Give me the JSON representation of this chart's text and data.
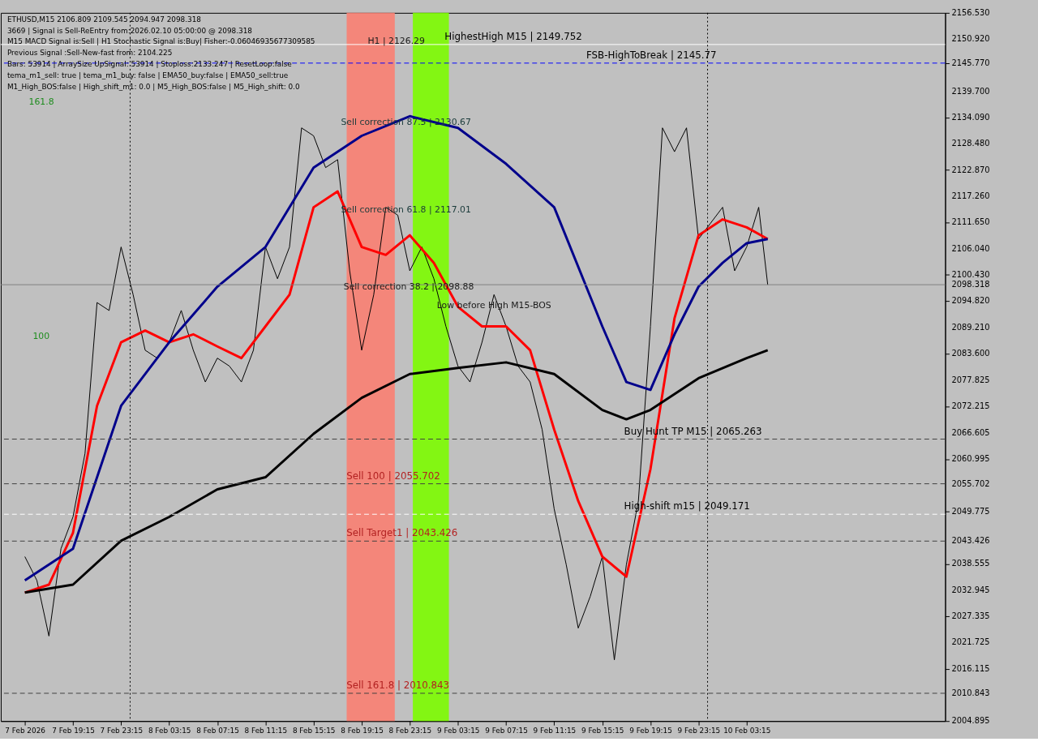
{
  "chart_data": {
    "type": "line",
    "title": "ETHUSD,M15  2106.809 2109.545 2094.947 2098.318",
    "x": [
      "2026-02-07T15:15",
      "2026-02-07T16:15",
      "2026-02-07T17:15",
      "2026-02-07T18:15",
      "2026-02-07T19:15",
      "2026-02-07T20:15",
      "2026-02-07T21:15",
      "2026-02-07T22:15",
      "2026-02-07T23:15",
      "2026-02-08T00:15",
      "2026-02-08T01:15",
      "2026-02-08T02:15",
      "2026-02-08T03:15",
      "2026-02-08T04:15",
      "2026-02-08T05:15",
      "2026-02-08T06:15",
      "2026-02-08T07:15",
      "2026-02-08T08:15",
      "2026-02-08T09:15",
      "2026-02-08T10:15",
      "2026-02-08T11:15",
      "2026-02-08T12:15",
      "2026-02-08T13:15",
      "2026-02-08T14:15",
      "2026-02-08T15:15",
      "2026-02-08T16:15",
      "2026-02-08T17:15",
      "2026-02-08T18:15",
      "2026-02-08T19:15",
      "2026-02-08T20:15",
      "2026-02-08T21:15",
      "2026-02-08T22:15",
      "2026-02-08T23:15",
      "2026-02-09T00:15",
      "2026-02-09T01:15",
      "2026-02-09T02:15",
      "2026-02-09T03:15",
      "2026-02-09T04:15",
      "2026-02-09T05:15",
      "2026-02-09T06:15",
      "2026-02-09T07:15",
      "2026-02-09T08:15",
      "2026-02-09T09:15",
      "2026-02-09T10:15",
      "2026-02-09T11:15",
      "2026-02-09T12:15",
      "2026-02-09T13:15",
      "2026-02-09T14:15",
      "2026-02-09T15:15",
      "2026-02-09T16:15",
      "2026-02-09T17:15",
      "2026-02-09T18:15",
      "2026-02-09T19:15",
      "2026-02-09T20:15",
      "2026-02-09T21:15",
      "2026-02-09T22:15",
      "2026-02-09T23:15",
      "2026-02-10T00:15",
      "2026-02-10T01:15",
      "2026-02-10T02:15",
      "2026-02-10T03:15",
      "2026-02-10T04:15",
      "2026-02-10T05:00"
    ],
    "series": [
      {
        "color": "#000000",
        "values": [
          2040.1,
          2035.0,
          2023.1,
          2041.8,
          2048.6,
          2062.2,
          2094.5,
          2092.8,
          2106.4,
          2096.2,
          2084.3,
          2082.6,
          2086.0,
          2092.8,
          2084.3,
          2077.5,
          2082.6,
          2080.9,
          2077.5,
          2084.3,
          2106.4,
          2099.6,
          2106.4,
          2131.9,
          2130.2,
          2123.4,
          2125.1,
          2101.3,
          2084.3,
          2096.2,
          2114.9,
          2113.2,
          2101.3,
          2106.4,
          2099.6,
          2089.4,
          2080.9,
          2077.5,
          2086.0,
          2096.2,
          2089.4,
          2080.9,
          2077.5,
          2067.3,
          2050.3,
          2038.4,
          2024.8,
          2031.6,
          2040.1,
          2018.0,
          2038.4,
          2052.0,
          2089.4,
          2131.9,
          2126.8,
          2131.9,
          2108.1,
          2111.5,
          2114.9,
          2101.3,
          2106.4,
          2114.9,
          2098.3
        ]
      },
      {
        "color": "#ff0000",
        "x": [
          "2026-02-07T15:15",
          "2026-02-07T17:15",
          "2026-02-07T19:15",
          "2026-02-07T21:15",
          "2026-02-07T23:15",
          "2026-02-08T01:15",
          "2026-02-08T03:15",
          "2026-02-08T05:15",
          "2026-02-08T07:15",
          "2026-02-08T09:15",
          "2026-02-08T11:15",
          "2026-02-08T13:15",
          "2026-02-08T15:15",
          "2026-02-08T17:15",
          "2026-02-08T19:15",
          "2026-02-08T21:15",
          "2026-02-08T23:15",
          "2026-02-09T01:15",
          "2026-02-09T03:15",
          "2026-02-09T05:15",
          "2026-02-09T07:15",
          "2026-02-09T09:15",
          "2026-02-09T11:15",
          "2026-02-09T13:15",
          "2026-02-09T15:15",
          "2026-02-09T17:15",
          "2026-02-09T19:15",
          "2026-02-09T21:15",
          "2026-02-09T23:15",
          "2026-02-10T01:15",
          "2026-02-10T03:15",
          "2026-02-10T05:00"
        ],
        "values": [
          2032.4,
          2034.1,
          2045.2,
          2072.4,
          2086.0,
          2088.5,
          2086.0,
          2087.7,
          2085.1,
          2082.6,
          2089.4,
          2096.2,
          2114.9,
          2118.3,
          2106.4,
          2104.7,
          2108.9,
          2103.0,
          2093.6,
          2089.4,
          2089.4,
          2084.3,
          2067.3,
          2052.0,
          2040.1,
          2035.8,
          2058.8,
          2091.1,
          2108.9,
          2112.3,
          2110.6,
          2108.1
        ]
      },
      {
        "color": "#00008b",
        "x": [
          "2026-02-07T15:15",
          "2026-02-07T19:15",
          "2026-02-07T23:15",
          "2026-02-08T03:15",
          "2026-02-08T07:15",
          "2026-02-08T11:15",
          "2026-02-08T15:15",
          "2026-02-08T19:15",
          "2026-02-08T23:15",
          "2026-02-09T03:15",
          "2026-02-09T07:15",
          "2026-02-09T11:15",
          "2026-02-09T15:15",
          "2026-02-09T17:15",
          "2026-02-09T19:15",
          "2026-02-09T21:15",
          "2026-02-09T23:15",
          "2026-02-10T01:15",
          "2026-02-10T03:15",
          "2026-02-10T05:00"
        ],
        "values": [
          2035.0,
          2041.8,
          2072.4,
          2086.0,
          2097.9,
          2106.4,
          2123.4,
          2130.2,
          2134.4,
          2131.9,
          2124.2,
          2114.9,
          2089.4,
          2077.5,
          2075.8,
          2087.7,
          2097.9,
          2103.0,
          2107.2,
          2108.1
        ]
      },
      {
        "color": "#000000",
        "x": [
          "2026-02-07T15:15",
          "2026-02-07T19:15",
          "2026-02-07T23:15",
          "2026-02-08T03:15",
          "2026-02-08T07:15",
          "2026-02-08T11:15",
          "2026-02-08T15:15",
          "2026-02-08T19:15",
          "2026-02-08T23:15",
          "2026-02-09T03:15",
          "2026-02-09T07:15",
          "2026-02-09T11:15",
          "2026-02-09T15:15",
          "2026-02-09T17:15",
          "2026-02-09T19:15",
          "2026-02-09T23:15",
          "2026-02-10T03:15",
          "2026-02-10T05:00"
        ],
        "values": [
          2032.4,
          2034.1,
          2043.5,
          2048.6,
          2054.5,
          2057.1,
          2066.4,
          2074.1,
          2079.2,
          2080.5,
          2081.7,
          2079.2,
          2071.5,
          2069.5,
          2071.5,
          2078.3,
          2082.6,
          2084.3
        ]
      }
    ],
    "xlim": [
      "2026-02-07T13:15",
      "2026-02-10T19:45"
    ],
    "xticks": [
      {
        "value": "2026-02-07T15:15",
        "label": "7 Feb 2026"
      },
      {
        "value": "2026-02-07T19:15",
        "label": "7 Feb 19:15"
      },
      {
        "value": "2026-02-07T23:15",
        "label": "7 Feb 23:15"
      },
      {
        "value": "2026-02-08T03:15",
        "label": "8 Feb 03:15"
      },
      {
        "value": "2026-02-08T07:15",
        "label": "8 Feb 07:15"
      },
      {
        "value": "2026-02-08T11:15",
        "label": "8 Feb 11:15"
      },
      {
        "value": "2026-02-08T15:15",
        "label": "8 Feb 15:15"
      },
      {
        "value": "2026-02-08T19:15",
        "label": "8 Feb 19:15"
      },
      {
        "value": "2026-02-08T23:15",
        "label": "8 Feb 23:15"
      },
      {
        "value": "2026-02-09T03:15",
        "label": "9 Feb 03:15"
      },
      {
        "value": "2026-02-09T07:15",
        "label": "9 Feb 07:15"
      },
      {
        "value": "2026-02-09T11:15",
        "label": "9 Feb 11:15"
      },
      {
        "value": "2026-02-09T15:15",
        "label": "9 Feb 15:15"
      },
      {
        "value": "2026-02-09T19:15",
        "label": "9 Feb 19:15"
      },
      {
        "value": "2026-02-09T23:15",
        "label": "9 Feb 23:15"
      },
      {
        "value": "2026-02-10T03:15",
        "label": "10 Feb 03:15"
      }
    ],
    "ylim": [
      2004.895,
      2156.53
    ],
    "yticks": [
      {
        "value": 2156.53,
        "label": "2156.530"
      },
      {
        "value": 2150.92,
        "label": "2150.920"
      },
      {
        "value": 2145.77,
        "label": "2145.770"
      },
      {
        "value": 2139.7,
        "label": "2139.700"
      },
      {
        "value": 2134.09,
        "label": "2134.090"
      },
      {
        "value": 2128.48,
        "label": "2128.480"
      },
      {
        "value": 2122.87,
        "label": "2122.870"
      },
      {
        "value": 2117.26,
        "label": "2117.260"
      },
      {
        "value": 2111.65,
        "label": "2111.650"
      },
      {
        "value": 2106.04,
        "label": "2106.040"
      },
      {
        "value": 2100.43,
        "label": "2100.430"
      },
      {
        "value": 2098.318,
        "label": "2098.318"
      },
      {
        "value": 2094.82,
        "label": "2094.820"
      },
      {
        "value": 2089.21,
        "label": "2089.210"
      },
      {
        "value": 2083.6,
        "label": "2083.600"
      },
      {
        "value": 2077.825,
        "label": "2077.825"
      },
      {
        "value": 2072.215,
        "label": "2072.215"
      },
      {
        "value": 2066.605,
        "label": "2066.605"
      },
      {
        "value": 2060.995,
        "label": "2060.995"
      },
      {
        "value": 2055.702,
        "label": "2055.702"
      },
      {
        "value": 2049.775,
        "label": "2049.775"
      },
      {
        "value": 2043.426,
        "label": "2043.426"
      },
      {
        "value": 2038.555,
        "label": "2038.555"
      },
      {
        "value": 2032.945,
        "label": "2032.945"
      },
      {
        "value": 2027.335,
        "label": "2027.335"
      },
      {
        "value": 2021.725,
        "label": "2021.725"
      },
      {
        "value": 2016.115,
        "label": "2016.115"
      },
      {
        "value": 2010.843,
        "label": "2010.843"
      },
      {
        "value": 2004.895,
        "label": "2004.895"
      }
    ],
    "bands": [
      {
        "axis": "x",
        "from": "2026-02-08T18:00",
        "to": "2026-02-08T22:00",
        "color": "#fa8072"
      },
      {
        "axis": "x",
        "from": "2026-02-08T23:30",
        "to": "2026-02-09T02:30",
        "color": "#7cfc00"
      }
    ],
    "ref_lines": [
      {
        "axis": "y",
        "value": 2149.752,
        "label": "HighestHigh  M15 | 2149.752",
        "color": "#ffffff",
        "line_style": "solid"
      },
      {
        "axis": "y",
        "value": 2145.77,
        "label": "FSB-HighToBreak | 2145.77",
        "color": "#0000ff",
        "line_style": "dashed"
      },
      {
        "axis": "y",
        "value": 2098.318,
        "color": "#808080",
        "line_style": "solid"
      },
      {
        "axis": "y",
        "value": 2065.263,
        "label": "Buy Hunt TP M15 | 2065.263",
        "color": "#404040",
        "line_style": "dashed"
      },
      {
        "axis": "y",
        "value": 2055.702,
        "label": "Sell 100 | 2055.702",
        "color": "#404040",
        "line_style": "dashed"
      },
      {
        "axis": "y",
        "value": 2049.171,
        "label": "High-shift m15 | 2049.171",
        "color": "#ffffff",
        "line_style": "dashed"
      },
      {
        "axis": "y",
        "value": 2043.426,
        "label": "Sell Target1 | 2043.426",
        "color": "#404040",
        "line_style": "dashed"
      },
      {
        "axis": "y",
        "value": 2010.843,
        "label": "Sell 161.8 | 2010.843",
        "color": "#404040",
        "line_style": "dashed"
      },
      {
        "axis": "x",
        "value": "2026-02-08T00:00",
        "color": "#000000",
        "line_style": "dotted"
      },
      {
        "axis": "x",
        "value": "2026-02-10T00:00",
        "color": "#000000",
        "line_style": "dotted"
      }
    ],
    "annotations": [
      "3669 | Signal is Sell-ReEntry from:2026.02.10 05:00:00 @ 2098.318",
      "M15 MACD Signal is:Sell | H1 Stochastic Signal is:Buy| Fisher:-0.06046935677309585",
      "Previous Signal :Sell-New-fast from: 2104.225",
      "Bars: 53914 | ArraySize UpSignal: 53914 | Stoploss:2133.247 | ResetLoop:false",
      "tema_m1_sell: true | tema_m1_buy: false | EMA50_buy:false | EMA50_sell:true",
      "M1_High_BOS:false | High_shift_m1: 0.0 | M5_High_BOS:false | M5_High_shift: 0.0",
      {
        "text": "H1 | 2126.29",
        "x": "2026-02-08T19:45",
        "y": 2150.5
      },
      {
        "text": "Sell correction 38.2 | 2098.88",
        "x": "2026-02-08T17:45",
        "y": 2097.9
      },
      {
        "text": "Low before High  M15-BOS",
        "x": "2026-02-09T01:30",
        "y": 2093.8
      },
      "Sell correction 87.5 | 2130.67",
      "Sell correction 61.8 | 2117.01",
      "161.8",
      "100"
    ],
    "grid": false
  }
}
